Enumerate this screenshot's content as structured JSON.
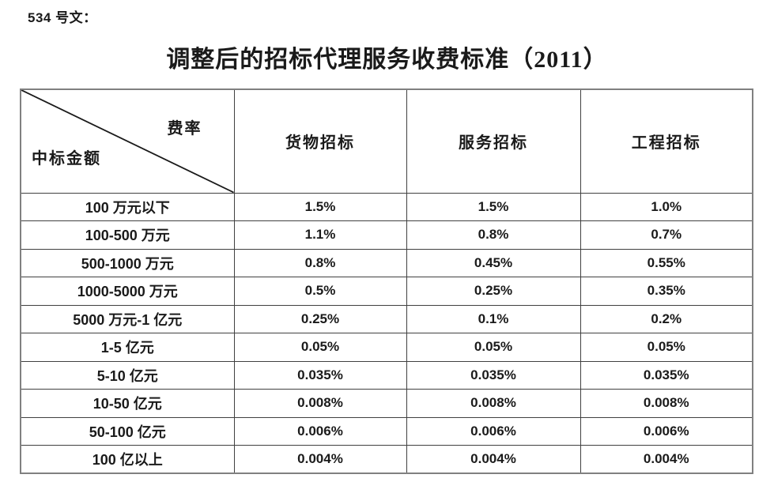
{
  "page": {
    "doc_label": "534 号文：",
    "title": "调整后的招标代理服务收费标准（2011）"
  },
  "table": {
    "corner": {
      "top_right": "费率",
      "bottom_left": "中标金额"
    },
    "columns": [
      "货物招标",
      "服务招标",
      "工程招标"
    ],
    "rows": [
      {
        "label": "100 万元以下",
        "values": [
          "1.5%",
          "1.5%",
          "1.0%"
        ]
      },
      {
        "label": "100-500 万元",
        "values": [
          "1.1%",
          "0.8%",
          "0.7%"
        ]
      },
      {
        "label": "500-1000 万元",
        "values": [
          "0.8%",
          "0.45%",
          "0.55%"
        ]
      },
      {
        "label": "1000-5000 万元",
        "values": [
          "0.5%",
          "0.25%",
          "0.35%"
        ]
      },
      {
        "label": "5000 万元-1 亿元",
        "values": [
          "0.25%",
          "0.1%",
          "0.2%"
        ]
      },
      {
        "label": "1-5 亿元",
        "values": [
          "0.05%",
          "0.05%",
          "0.05%"
        ]
      },
      {
        "label": "5-10 亿元",
        "values": [
          "0.035%",
          "0.035%",
          "0.035%"
        ]
      },
      {
        "label": "10-50 亿元",
        "values": [
          "0.008%",
          "0.008%",
          "0.008%"
        ]
      },
      {
        "label": "50-100 亿元",
        "values": [
          "0.006%",
          "0.006%",
          "0.006%"
        ]
      },
      {
        "label": "100 亿以上",
        "values": [
          "0.004%",
          "0.004%",
          "0.004%"
        ]
      }
    ]
  },
  "colors": {
    "background": "#ffffff",
    "text": "#1a1a1a",
    "border_outer": "#808080",
    "border_inner": "#404040",
    "diagonal_line": "#1a1a1a"
  }
}
